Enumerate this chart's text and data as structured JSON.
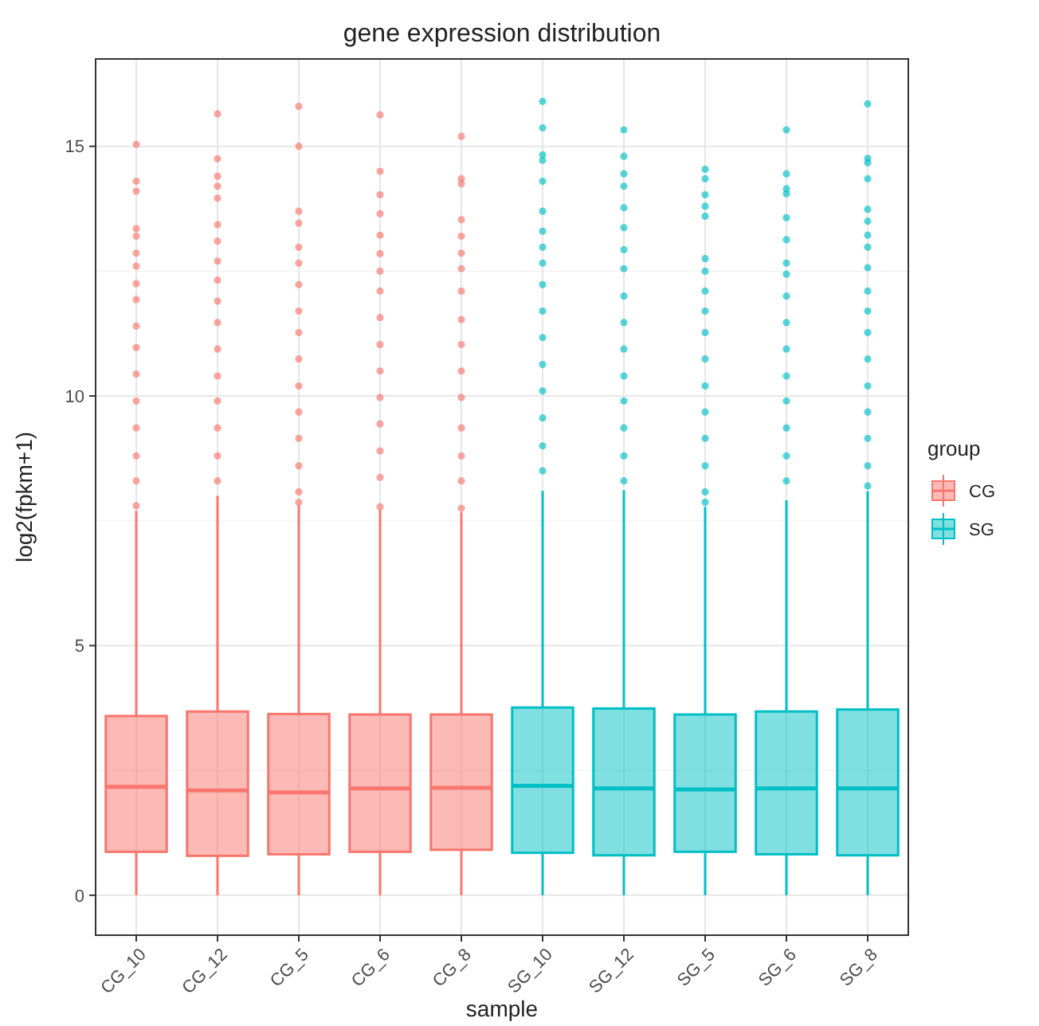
{
  "chart_data": {
    "type": "box",
    "title": "gene expression distribution",
    "xlabel": "sample",
    "ylabel": "log2(fpkm+1)",
    "legend_title": "group",
    "legend": "right",
    "grid": true,
    "categories": [
      "CG_10",
      "CG_12",
      "CG_5",
      "CG_6",
      "CG_8",
      "SG_10",
      "SG_12",
      "SG_5",
      "SG_6",
      "SG_8"
    ],
    "ylim": [
      -0.8,
      16.75
    ],
    "yticks": [
      0,
      5,
      10,
      15
    ],
    "series": [
      {
        "name": "CG",
        "color": "#f8766d",
        "boxes": [
          {
            "low": 0,
            "q1": 0.87,
            "median": 2.17,
            "q3": 3.59,
            "high": 7.7,
            "outliers": [
              15.04,
              14.3,
              14.1,
              13.35,
              13.2,
              12.86,
              12.6,
              12.25,
              11.93,
              11.4,
              10.97,
              10.44,
              9.9,
              9.36,
              8.8,
              8.3,
              7.8
            ]
          },
          {
            "low": 0,
            "q1": 0.79,
            "median": 2.1,
            "q3": 3.68,
            "high": 8.0,
            "outliers": [
              15.65,
              14.75,
              14.4,
              14.2,
              13.96,
              13.43,
              13.1,
              12.7,
              12.32,
              11.9,
              11.47,
              10.94,
              10.4,
              9.9,
              9.36,
              8.8,
              8.3
            ]
          },
          {
            "low": 0,
            "q1": 0.82,
            "median": 2.06,
            "q3": 3.63,
            "high": 7.81,
            "outliers": [
              15.8,
              15.0,
              13.7,
              13.46,
              12.98,
              12.66,
              12.23,
              11.7,
              11.27,
              10.74,
              10.2,
              9.68,
              9.15,
              8.6,
              8.08,
              7.87
            ]
          },
          {
            "low": 0,
            "q1": 0.87,
            "median": 2.14,
            "q3": 3.62,
            "high": 7.72,
            "outliers": [
              15.63,
              14.5,
              14.03,
              13.65,
              13.22,
              12.85,
              12.5,
              12.1,
              11.57,
              11.03,
              10.5,
              9.97,
              9.44,
              8.9,
              8.37,
              7.78
            ]
          },
          {
            "low": 0,
            "q1": 0.91,
            "median": 2.15,
            "q3": 3.62,
            "high": 7.67,
            "outliers": [
              15.2,
              14.35,
              14.25,
              13.53,
              13.2,
              12.86,
              12.55,
              12.1,
              11.53,
              11.03,
              10.5,
              9.97,
              9.36,
              8.8,
              8.3,
              7.75
            ]
          },
          null,
          null,
          null,
          null,
          null
        ]
      },
      {
        "name": "SG",
        "color": "#00bfc4",
        "boxes": [
          null,
          null,
          null,
          null,
          null,
          {
            "low": 0,
            "q1": 0.85,
            "median": 2.19,
            "q3": 3.76,
            "high": 8.1,
            "outliers": [
              15.9,
              15.37,
              14.83,
              14.72,
              14.3,
              13.7,
              13.3,
              12.98,
              12.66,
              12.23,
              11.7,
              11.17,
              10.63,
              10.1,
              9.56,
              9.0,
              8.5
            ]
          },
          {
            "low": 0,
            "q1": 0.8,
            "median": 2.14,
            "q3": 3.74,
            "high": 8.11,
            "outliers": [
              15.33,
              14.8,
              14.45,
              14.2,
              13.77,
              13.37,
              12.93,
              12.55,
              12.0,
              11.47,
              10.94,
              10.4,
              9.9,
              9.36,
              8.8,
              8.3
            ]
          },
          {
            "low": 0,
            "q1": 0.87,
            "median": 2.12,
            "q3": 3.62,
            "high": 7.78,
            "outliers": [
              14.54,
              14.35,
              14.03,
              13.8,
              13.6,
              12.75,
              12.5,
              12.1,
              11.7,
              11.27,
              10.74,
              10.2,
              9.68,
              9.15,
              8.6,
              8.08,
              7.87
            ]
          },
          {
            "low": 0,
            "q1": 0.82,
            "median": 2.14,
            "q3": 3.68,
            "high": 7.91,
            "outliers": [
              15.33,
              14.45,
              14.15,
              14.05,
              13.57,
              13.13,
              12.66,
              12.44,
              12.0,
              11.47,
              10.94,
              10.4,
              9.9,
              9.36,
              8.8,
              8.3
            ]
          },
          {
            "low": 0,
            "q1": 0.8,
            "median": 2.14,
            "q3": 3.72,
            "high": 8.09,
            "outliers": [
              15.85,
              14.76,
              14.67,
              14.35,
              13.74,
              13.5,
              13.22,
              12.98,
              12.57,
              12.1,
              11.7,
              11.27,
              10.74,
              10.2,
              9.68,
              9.15,
              8.6,
              8.2
            ]
          }
        ]
      }
    ]
  }
}
